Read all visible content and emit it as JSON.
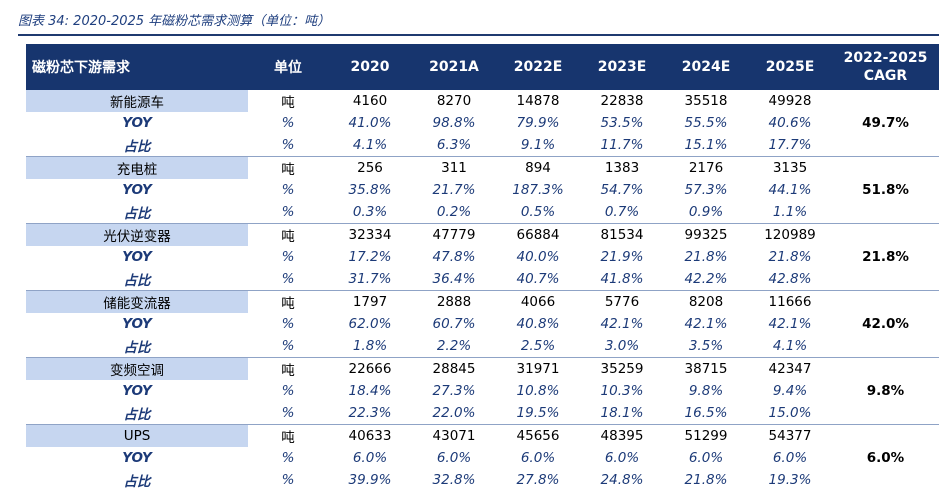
{
  "caption": "图表 34: 2020-2025 年磁粉芯需求测算（单位：吨）",
  "header": {
    "segment": "磁粉芯下游需求",
    "unit": "单位",
    "years": [
      "2020",
      "2021A",
      "2022E",
      "2023E",
      "2024E",
      "2025E"
    ],
    "cagr_line1": "2022-2025",
    "cagr_line2": "CAGR"
  },
  "sub_labels": {
    "yoy": "YOY",
    "share": "占比"
  },
  "groups": [
    {
      "name": "新能源车",
      "unit_tons": "吨",
      "unit_pct": "%",
      "tons": [
        "4160",
        "8270",
        "14878",
        "22838",
        "35518",
        "49928"
      ],
      "yoy": [
        "41.0%",
        "98.8%",
        "79.9%",
        "53.5%",
        "55.5%",
        "40.6%"
      ],
      "share": [
        "4.1%",
        "6.3%",
        "9.1%",
        "11.7%",
        "15.1%",
        "17.7%"
      ],
      "cagr": "49.7%"
    },
    {
      "name": "充电桩",
      "unit_tons": "吨",
      "unit_pct": "%",
      "tons": [
        "256",
        "311",
        "894",
        "1383",
        "2176",
        "3135"
      ],
      "yoy": [
        "35.8%",
        "21.7%",
        "187.3%",
        "54.7%",
        "57.3%",
        "44.1%"
      ],
      "share": [
        "0.3%",
        "0.2%",
        "0.5%",
        "0.7%",
        "0.9%",
        "1.1%"
      ],
      "cagr": "51.8%"
    },
    {
      "name": "光伏逆变器",
      "unit_tons": "吨",
      "unit_pct": "%",
      "tons": [
        "32334",
        "47779",
        "66884",
        "81534",
        "99325",
        "120989"
      ],
      "yoy": [
        "17.2%",
        "47.8%",
        "40.0%",
        "21.9%",
        "21.8%",
        "21.8%"
      ],
      "share": [
        "31.7%",
        "36.4%",
        "40.7%",
        "41.8%",
        "42.2%",
        "42.8%"
      ],
      "cagr": "21.8%"
    },
    {
      "name": "储能变流器",
      "unit_tons": "吨",
      "unit_pct": "%",
      "tons": [
        "1797",
        "2888",
        "4066",
        "5776",
        "8208",
        "11666"
      ],
      "yoy": [
        "62.0%",
        "60.7%",
        "40.8%",
        "42.1%",
        "42.1%",
        "42.1%"
      ],
      "share": [
        "1.8%",
        "2.2%",
        "2.5%",
        "3.0%",
        "3.5%",
        "4.1%"
      ],
      "cagr": "42.0%"
    },
    {
      "name": "变频空调",
      "unit_tons": "吨",
      "unit_pct": "%",
      "tons": [
        "22666",
        "28845",
        "31971",
        "35259",
        "38715",
        "42347"
      ],
      "yoy": [
        "18.4%",
        "27.3%",
        "10.8%",
        "10.3%",
        "9.8%",
        "9.4%"
      ],
      "share": [
        "22.3%",
        "22.0%",
        "19.5%",
        "18.1%",
        "16.5%",
        "15.0%"
      ],
      "cagr": "9.8%"
    },
    {
      "name": "UPS",
      "unit_tons": "吨",
      "unit_pct": "%",
      "tons": [
        "40633",
        "43071",
        "45656",
        "48395",
        "51299",
        "54377"
      ],
      "yoy": [
        "6.0%",
        "6.0%",
        "6.0%",
        "6.0%",
        "6.0%",
        "6.0%"
      ],
      "share": [
        "39.9%",
        "32.8%",
        "27.8%",
        "24.8%",
        "21.8%",
        "19.3%"
      ],
      "cagr": "6.0%"
    }
  ]
}
